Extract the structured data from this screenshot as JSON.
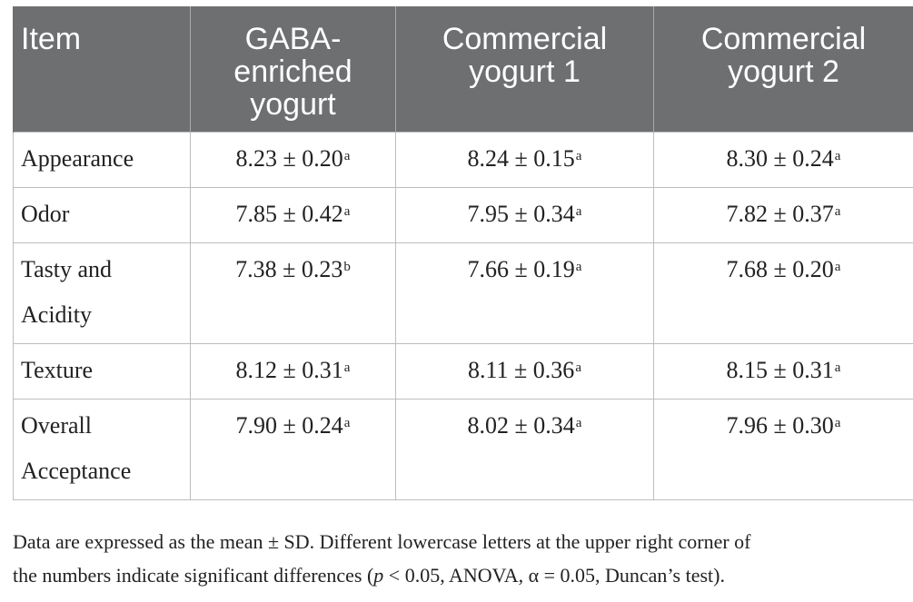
{
  "table": {
    "headers": {
      "item": "Item",
      "col1_line1": "GABA-",
      "col1_line2": "enriched",
      "col1_line3": "yogurt",
      "col2_line1": "Commercial",
      "col2_line2": "yogurt 1",
      "col3_line1": "Commercial",
      "col3_line2": "yogurt 2"
    },
    "rows": [
      {
        "item_line1": "Appearance",
        "item_line2": "",
        "v1": "8.23 ± 0.20",
        "s1": "a",
        "v2": "8.24 ± 0.15",
        "s2": "a",
        "v3": "8.30 ± 0.24",
        "s3": "a"
      },
      {
        "item_line1": "Odor",
        "item_line2": "",
        "v1": "7.85 ± 0.42",
        "s1": "a",
        "v2": "7.95 ± 0.34",
        "s2": "a",
        "v3": "7.82 ± 0.37",
        "s3": "a"
      },
      {
        "item_line1": "Tasty and",
        "item_line2": "Acidity",
        "v1": "7.38 ± 0.23",
        "s1": "b",
        "v2": "7.66 ± 0.19",
        "s2": "a",
        "v3": "7.68 ± 0.20",
        "s3": "a"
      },
      {
        "item_line1": "Texture",
        "item_line2": "",
        "v1": "8.12 ± 0.31",
        "s1": "a",
        "v2": "8.11 ± 0.36",
        "s2": "a",
        "v3": "8.15 ± 0.31",
        "s3": "a"
      },
      {
        "item_line1": "Overall",
        "item_line2": "Acceptance",
        "v1": "7.90 ± 0.24",
        "s1": "a",
        "v2": "8.02 ± 0.34",
        "s2": "a",
        "v3": "7.96 ± 0.30",
        "s3": "a"
      }
    ]
  },
  "footnote": {
    "line1": "Data are expressed as the mean ± SD. Different lowercase letters at the upper right corner of",
    "line2_a": "the numbers indicate significant differences (",
    "line2_p": "p",
    "line2_b": " < 0.05, ANOVA, α = 0.05, Duncan’s test)."
  }
}
